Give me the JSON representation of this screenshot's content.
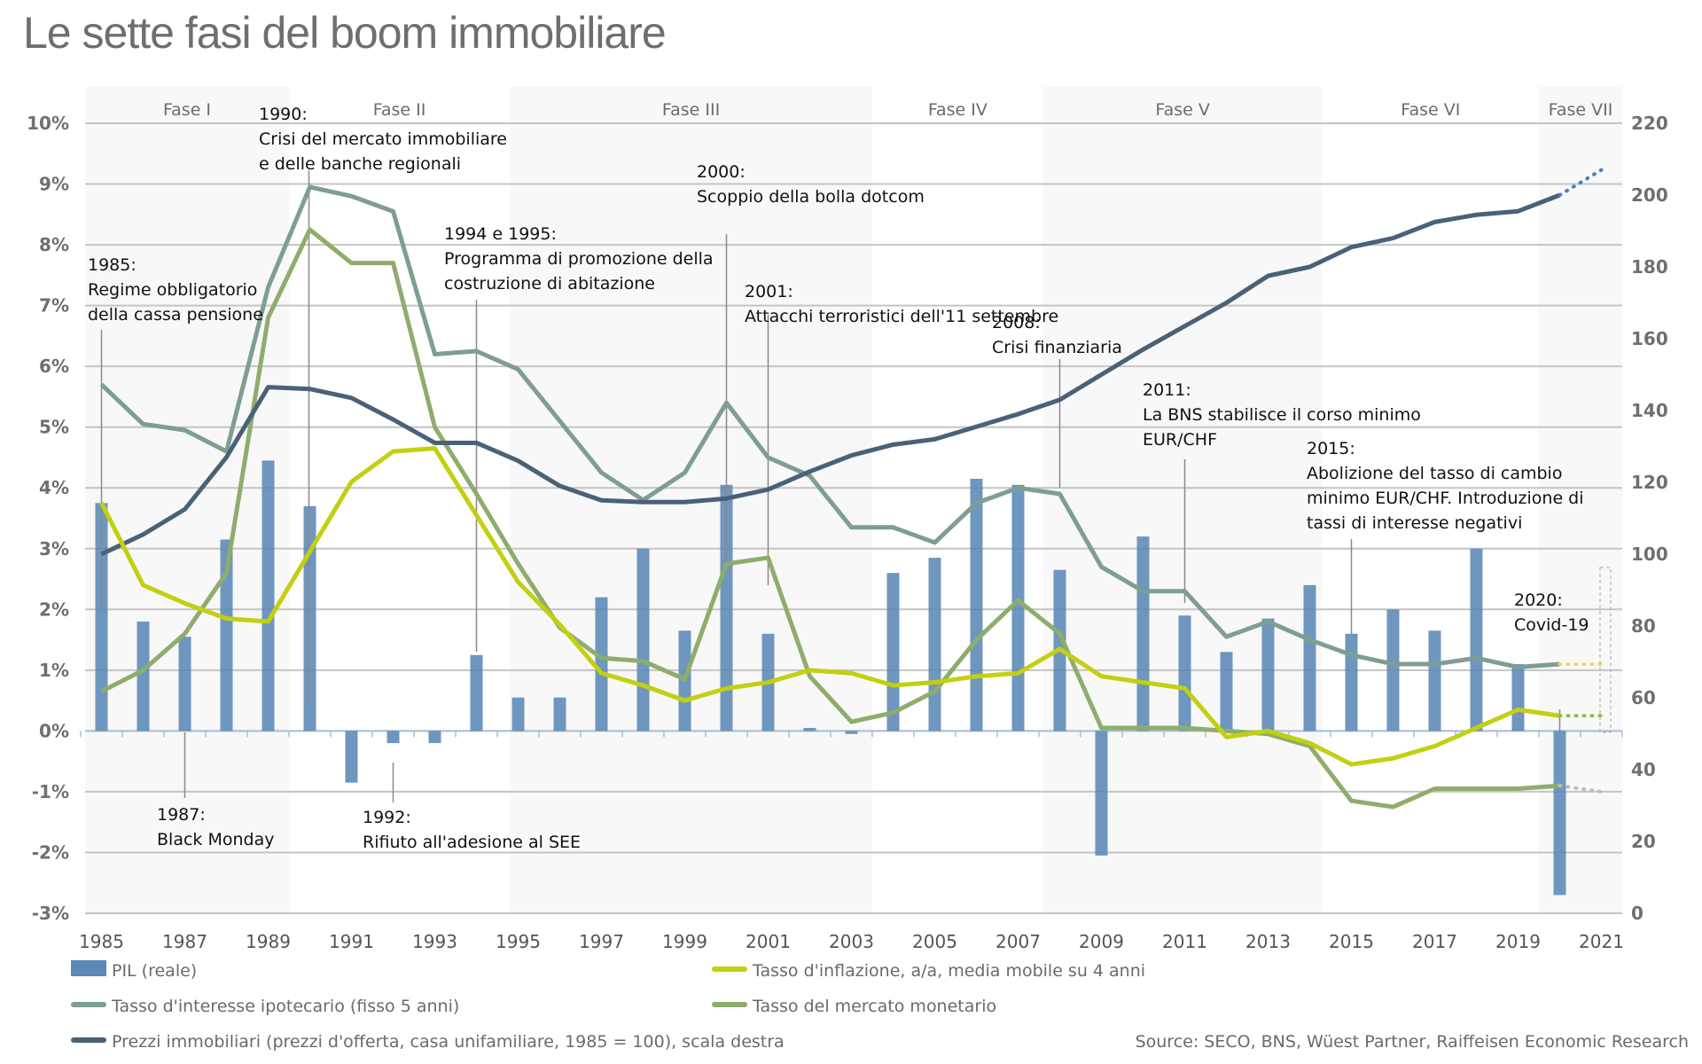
{
  "title": "Le sette fasi del boom immobiliare",
  "source": "Source: SECO, BNS, Wüest Partner, Raiffeisen Economic Research",
  "chart_data": {
    "type": "bar+line",
    "title": "Le sette fasi del boom immobiliare",
    "x": [
      1985,
      1986,
      1987,
      1988,
      1989,
      1990,
      1991,
      1992,
      1993,
      1994,
      1995,
      1996,
      1997,
      1998,
      1999,
      2000,
      2001,
      2002,
      2003,
      2004,
      2005,
      2006,
      2007,
      2008,
      2009,
      2010,
      2011,
      2012,
      2013,
      2014,
      2015,
      2016,
      2017,
      2018,
      2019,
      2020,
      2021
    ],
    "x_tick_labels": [
      "1985",
      "1987",
      "1989",
      "1991",
      "1993",
      "1995",
      "1997",
      "1999",
      "2001",
      "2003",
      "2005",
      "2007",
      "2009",
      "2011",
      "2013",
      "2015",
      "2017",
      "2019",
      "2021"
    ],
    "left_axis": {
      "ylim": [
        -3,
        10
      ],
      "ticks": [
        "-3%",
        "-2%",
        "-1%",
        "0%",
        "1%",
        "2%",
        "3%",
        "4%",
        "5%",
        "6%",
        "7%",
        "8%",
        "9%",
        "10%"
      ]
    },
    "right_axis": {
      "ylim": [
        0,
        220
      ],
      "ticks": [
        "0",
        "20",
        "40",
        "60",
        "80",
        "100",
        "120",
        "140",
        "160",
        "180",
        "200",
        "220"
      ]
    },
    "grid": true,
    "legend_position": "bottom",
    "phases": [
      {
        "label": "Fase I",
        "from": 1984.6,
        "to": 1989.5,
        "shaded": true
      },
      {
        "label": "Fase II",
        "from": 1989.5,
        "to": 1994.8,
        "shaded": false
      },
      {
        "label": "Fase III",
        "from": 1994.8,
        "to": 2003.5,
        "shaded": true
      },
      {
        "label": "Fase IV",
        "from": 2003.5,
        "to": 2007.6,
        "shaded": false
      },
      {
        "label": "Fase V",
        "from": 2007.6,
        "to": 2014.3,
        "shaded": true
      },
      {
        "label": "Fase VI",
        "from": 2014.3,
        "to": 2019.5,
        "shaded": false
      },
      {
        "label": "Fase VII",
        "from": 2019.5,
        "to": 2021.5,
        "shaded": true
      }
    ],
    "series": [
      {
        "name": "PIL (reale)",
        "type": "bar",
        "axis": "left",
        "color": "#5b88b5",
        "values": [
          3.75,
          1.8,
          1.55,
          3.15,
          4.45,
          3.7,
          -0.85,
          -0.2,
          -0.2,
          1.25,
          0.55,
          0.55,
          2.2,
          3.0,
          1.65,
          4.05,
          1.6,
          0.05,
          -0.05,
          2.6,
          2.85,
          4.15,
          4.05,
          2.65,
          -2.05,
          3.2,
          1.9,
          1.3,
          1.85,
          2.4,
          1.6,
          2.0,
          1.65,
          3.0,
          1.1,
          -2.7,
          null
        ]
      },
      {
        "name": "Tasso d'inflazione, a/a, media mobile su 4 anni",
        "type": "line",
        "axis": "left",
        "color": "#c3cf11",
        "values": [
          3.75,
          2.4,
          2.1,
          1.85,
          1.8,
          2.95,
          4.1,
          4.6,
          4.65,
          3.55,
          2.45,
          1.75,
          0.95,
          0.75,
          0.5,
          0.7,
          0.8,
          1.0,
          0.95,
          0.75,
          0.8,
          0.9,
          0.95,
          1.35,
          0.9,
          0.8,
          0.7,
          -0.1,
          0.0,
          -0.2,
          -0.55,
          -0.45,
          -0.25,
          0.05,
          0.35,
          0.25,
          0.25
        ],
        "forecast_from": 2020
      },
      {
        "name": "Tasso d'interesse ipotecario (fisso 5 anni)",
        "type": "line",
        "axis": "left",
        "color": "#7f9e92",
        "values": [
          5.7,
          5.05,
          4.95,
          4.6,
          7.3,
          8.95,
          8.8,
          8.55,
          6.2,
          6.25,
          5.95,
          5.1,
          4.25,
          3.8,
          4.25,
          5.4,
          4.5,
          4.2,
          3.35,
          3.35,
          3.1,
          3.75,
          4.0,
          3.9,
          2.7,
          2.3,
          2.3,
          1.55,
          1.8,
          1.5,
          1.25,
          1.1,
          1.1,
          1.2,
          1.05,
          1.1,
          1.1
        ],
        "forecast_from": 2020
      },
      {
        "name": "Tasso del mercato monetario",
        "type": "line",
        "axis": "left",
        "color": "#8ead6c",
        "values": [
          0.65,
          1.0,
          1.6,
          2.6,
          6.8,
          8.25,
          7.7,
          7.7,
          5.0,
          3.9,
          2.75,
          1.7,
          1.2,
          1.15,
          0.85,
          2.75,
          2.85,
          0.9,
          0.15,
          0.3,
          0.65,
          1.5,
          2.15,
          1.6,
          0.05,
          0.05,
          0.05,
          0.0,
          -0.05,
          -0.25,
          -1.15,
          -1.25,
          -0.95,
          -0.95,
          -0.95,
          -0.9,
          -1.0
        ],
        "forecast_from": 2020
      },
      {
        "name": "Prezzi immobiliari (prezzi d'offerta, casa unifamiliare, 1985 = 100), scala destra",
        "type": "line",
        "axis": "right",
        "color": "#4a6177",
        "values": [
          100,
          105.5,
          112.5,
          127,
          146.5,
          146,
          143.5,
          137.5,
          131,
          131,
          126,
          119,
          115,
          114.5,
          114.5,
          115.5,
          118,
          123,
          127.5,
          130.5,
          132,
          135.5,
          139,
          143,
          150,
          157,
          163.5,
          170,
          177.5,
          180,
          185.5,
          188,
          192.5,
          194.5,
          195.5,
          200,
          207
        ],
        "forecast_from": 2020
      }
    ],
    "annotations": [
      {
        "year": 1985,
        "lines": [
          "1985:",
          "Regime obbligatorio",
          "della cassa pensione"
        ]
      },
      {
        "year": 1987,
        "lines": [
          "1987:",
          "Black Monday"
        ]
      },
      {
        "year": 1990,
        "lines": [
          "1990:",
          "Crisi del mercato immobiliare",
          "e delle banche regionali"
        ]
      },
      {
        "year": 1992,
        "lines": [
          "1992:",
          "Rifiuto all'adesione al SEE"
        ]
      },
      {
        "year": 1994,
        "lines": [
          "1994 e 1995:",
          "Programma di promozione della",
          "costruzione di abitazione"
        ]
      },
      {
        "year": 2000,
        "lines": [
          "2000:",
          "Scoppio della bolla dotcom"
        ]
      },
      {
        "year": 2001,
        "lines": [
          "2001:",
          "Attacchi terroristici dell'11 settembre"
        ]
      },
      {
        "year": 2008,
        "lines": [
          "2008:",
          "Crisi finanziaria"
        ]
      },
      {
        "year": 2011,
        "lines": [
          "2011:",
          "La BNS stabilisce il corso minimo",
          "EUR/CHF"
        ]
      },
      {
        "year": 2015,
        "lines": [
          "2015:",
          "Abolizione del tasso di cambio",
          "minimo EUR/CHF. Introduzione di",
          "tassi di interesse negativi"
        ]
      },
      {
        "year": 2020,
        "lines": [
          "2020:",
          "Covid-19"
        ]
      }
    ]
  }
}
